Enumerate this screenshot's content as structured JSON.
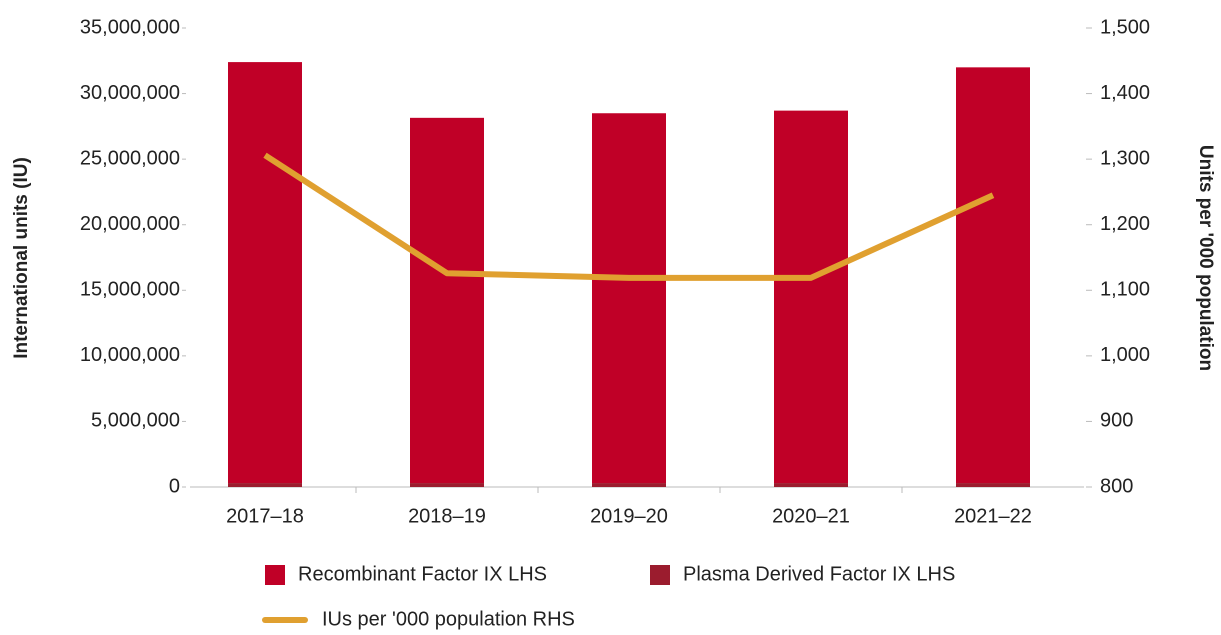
{
  "chart_data": {
    "type": "bar",
    "categories": [
      "2017–18",
      "2018–19",
      "2019–20",
      "2020–21",
      "2021–22"
    ],
    "series": [
      {
        "name": "Recombinant Factor IX LHS",
        "color": "#c00027",
        "values": [
          32100000,
          27850000,
          28200000,
          28400000,
          31700000
        ]
      },
      {
        "name": "Plasma Derived Factor IX LHS",
        "color": "#9b1c2e",
        "values": [
          300000,
          300000,
          300000,
          300000,
          300000
        ]
      },
      {
        "name": "IUs per '000 population RHS",
        "type": "line",
        "axis": "y2",
        "color": "#e0a030",
        "values": [
          1306,
          1126,
          1119,
          1119,
          1245
        ]
      }
    ],
    "ylabel": "International units (IU)",
    "y2label": "Units per '000 population",
    "ylim": [
      0,
      35000000
    ],
    "yticks": [
      0,
      {
        "value": 5000000,
        "label": "5,000,000"
      },
      {
        "value": 10000000,
        "label": "10,000,000"
      },
      {
        "value": 15000000,
        "label": "15,000,000"
      },
      {
        "value": 20000000,
        "label": "20,000,000"
      },
      {
        "value": 25000000,
        "label": "25,000,000"
      },
      {
        "value": 30000000,
        "label": "30,000,000"
      },
      {
        "value": 35000000,
        "label": "35,000,000"
      }
    ],
    "y2lim": [
      800,
      1500
    ],
    "y2ticks": [
      800,
      900,
      {
        "value": 1000,
        "label": "1,000"
      },
      {
        "value": 1100,
        "label": "1,100"
      },
      {
        "value": 1200,
        "label": "1,200"
      },
      {
        "value": 1300,
        "label": "1,300"
      },
      {
        "value": 1400,
        "label": "1,400"
      },
      {
        "value": 1500,
        "label": "1,500"
      }
    ],
    "grid": false,
    "legend": "bottom"
  }
}
